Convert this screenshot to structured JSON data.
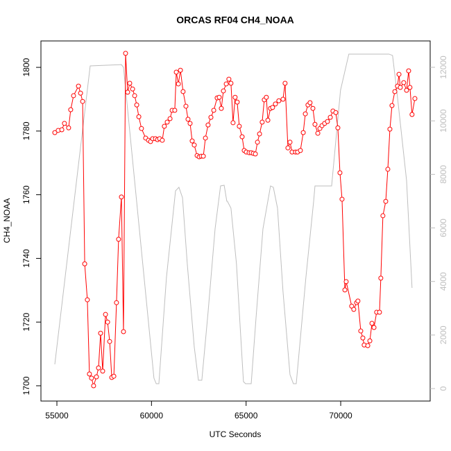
{
  "chart_data": {
    "type": "line",
    "title": "ORCAS RF04 CH4_NOAA",
    "xlabel": "UTC Seconds",
    "ylabel": "CH4_NOAA",
    "xlim": [
      54157,
      74729
    ],
    "xticks": [
      55000,
      60000,
      65000,
      70000
    ],
    "ylim": [
      1695.2,
      1808.3
    ],
    "yticks": [
      1700,
      1720,
      1740,
      1760,
      1780,
      1800
    ],
    "y2lim": [
      -466,
      12985
    ],
    "y2ticks": [
      0,
      2000,
      4000,
      6000,
      8000,
      10000,
      12000
    ],
    "y2color": "#bebebe",
    "series": [
      {
        "color": "#bebebe",
        "axis": "y2",
        "markers": false,
        "x": [
          54890,
          56760,
          58410,
          58520,
          60130,
          60250,
          60390,
          60790,
          61270,
          61450,
          61640,
          61890,
          62260,
          62480,
          62660,
          62990,
          63360,
          63650,
          63840,
          63980,
          64010,
          64200,
          64490,
          64750,
          64860,
          64970,
          65270,
          65520,
          65890,
          66290,
          66440,
          66660,
          66950,
          67320,
          67500,
          67650,
          68160,
          68570,
          68640,
          69520,
          69990,
          70430,
          72550,
          72740,
          72960,
          73480,
          73770
        ],
        "values": [
          907,
          12053,
          12100,
          12000,
          389,
          181,
          181,
          4147,
          7387,
          7517,
          7128,
          4666,
          1555,
          311,
          311,
          2851,
          5962,
          7569,
          7595,
          6998,
          6998,
          6739,
          4666,
          1555,
          259,
          181,
          181,
          2592,
          5962,
          7569,
          7517,
          6739,
          3629,
          518,
          181,
          181,
          4147,
          6998,
          7569,
          7569,
          11146,
          12494,
          12494,
          12442,
          11146,
          7776,
          3758
        ]
      },
      {
        "color": "#ff0000",
        "markers": true,
        "x": [
          54890,
          55070,
          55260,
          55400,
          55620,
          55730,
          55880,
          56140,
          56250,
          56360,
          56470,
          56610,
          56720,
          56830,
          56940,
          57090,
          57200,
          57310,
          57420,
          57570,
          57680,
          57790,
          57900,
          58010,
          58150,
          58260,
          58410,
          58520,
          58630,
          58740,
          58850,
          59000,
          59110,
          59220,
          59330,
          59470,
          59690,
          59840,
          59950,
          60060,
          60210,
          60320,
          60430,
          60570,
          60680,
          60830,
          60980,
          61090,
          61230,
          61310,
          61420,
          61530,
          61670,
          61820,
          61930,
          62040,
          62150,
          62260,
          62410,
          62520,
          62630,
          62740,
          62850,
          62990,
          63140,
          63290,
          63470,
          63580,
          63690,
          63800,
          63950,
          64090,
          64200,
          64310,
          64420,
          64530,
          64640,
          64790,
          64900,
          65010,
          65160,
          65270,
          65380,
          65490,
          65600,
          65710,
          65850,
          65960,
          66070,
          66150,
          66290,
          66400,
          66550,
          66730,
          66950,
          67060,
          67210,
          67320,
          67430,
          67610,
          67720,
          67870,
          68020,
          68130,
          68270,
          68380,
          68530,
          68640,
          68790,
          68900,
          69010,
          69150,
          69300,
          69450,
          69590,
          69740,
          69850,
          69960,
          70070,
          70220,
          70290,
          70580,
          70690,
          70840,
          70910,
          71060,
          71170,
          71240,
          71430,
          71540,
          71650,
          71760,
          71900,
          72050,
          72120,
          72230,
          72380,
          72490,
          72600,
          72710,
          72860,
          73000,
          73080,
          73150,
          73330,
          73480,
          73590,
          73660,
          73770,
          73920
        ],
        "values": [
          1779.5,
          1780.2,
          1780.4,
          1782.4,
          1781.0,
          1786.7,
          1791.1,
          1794.1,
          1791.9,
          1789.3,
          1738.3,
          1727.0,
          1703.7,
          1702.4,
          1700.0,
          1702.8,
          1705.6,
          1716.5,
          1704.6,
          1722.4,
          1720.0,
          1713.9,
          1702.6,
          1703.0,
          1726.1,
          1746.0,
          1759.3,
          1717.0,
          1804.4,
          1792.2,
          1795.0,
          1793.2,
          1791.1,
          1788.2,
          1784.5,
          1780.8,
          1777.8,
          1777.1,
          1776.7,
          1777.6,
          1777.6,
          1777.3,
          1777.6,
          1777.1,
          1781.5,
          1782.8,
          1783.9,
          1786.5,
          1786.5,
          1798.5,
          1794.8,
          1799.1,
          1792.4,
          1787.8,
          1783.7,
          1782.4,
          1776.9,
          1775.6,
          1772.3,
          1771.9,
          1772.1,
          1772.1,
          1777.8,
          1781.9,
          1784.3,
          1786.5,
          1790.4,
          1790.6,
          1787.1,
          1792.6,
          1794.8,
          1796.3,
          1795.0,
          1782.6,
          1790.6,
          1789.1,
          1781.5,
          1778.2,
          1773.9,
          1773.4,
          1773.2,
          1773.2,
          1773.0,
          1772.8,
          1776.5,
          1779.1,
          1782.8,
          1789.8,
          1790.6,
          1783.4,
          1787.1,
          1787.4,
          1788.5,
          1789.5,
          1790.0,
          1795.0,
          1774.7,
          1776.5,
          1773.4,
          1773.4,
          1773.4,
          1773.9,
          1779.5,
          1785.4,
          1788.2,
          1788.9,
          1787.1,
          1782.1,
          1779.3,
          1780.8,
          1781.7,
          1782.4,
          1783.0,
          1784.3,
          1786.3,
          1785.8,
          1781.0,
          1766.9,
          1758.6,
          1730.1,
          1732.7,
          1725.0,
          1724.0,
          1726.1,
          1726.6,
          1717.2,
          1715.0,
          1712.8,
          1712.6,
          1714.1,
          1719.6,
          1718.3,
          1723.1,
          1723.1,
          1733.8,
          1753.4,
          1757.9,
          1768.0,
          1780.6,
          1788.0,
          1792.4,
          1794.1,
          1797.8,
          1793.7,
          1795.2,
          1792.8,
          1798.9,
          1793.7,
          1785.2,
          1790.2
        ]
      }
    ]
  }
}
